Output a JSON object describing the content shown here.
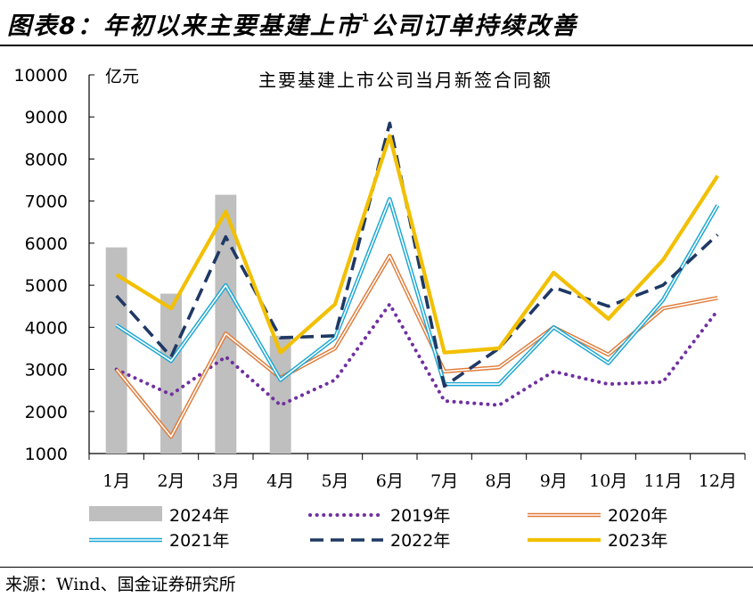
{
  "header": {
    "title": "图表8：年初以来主要基建上市",
    "title_sup": "1",
    "title_tail": "公司订单持续改善"
  },
  "source_note": "来源：Wind、国金证券研究所",
  "chart_data": {
    "type": "bar+line",
    "title": "主要基建上市公司当月新签合同额",
    "ylabel": "亿元",
    "xlabel": "",
    "ylim": [
      1000,
      10000
    ],
    "yticks": [
      1000,
      2000,
      3000,
      4000,
      5000,
      6000,
      7000,
      8000,
      9000,
      10000
    ],
    "categories": [
      "1月",
      "2月",
      "3月",
      "4月",
      "5月",
      "6月",
      "7月",
      "8月",
      "9月",
      "10月",
      "11月",
      "12月"
    ],
    "grid": false,
    "legend_position": "bottom",
    "bar_series": {
      "name": "2024年",
      "color": "#bfbfbf",
      "values": [
        5900,
        4800,
        7150,
        3800
      ]
    },
    "series": [
      {
        "name": "2019年",
        "style": "dotted",
        "color": "#7030a0",
        "values": [
          3000,
          2400,
          3300,
          2150,
          2750,
          4550,
          2250,
          2150,
          2950,
          2650,
          2700,
          4400
        ]
      },
      {
        "name": "2020年",
        "style": "double",
        "color": "#e07b39",
        "values": [
          3000,
          1400,
          3850,
          2800,
          3500,
          5700,
          2950,
          3050,
          4000,
          3350,
          4450,
          4700
        ]
      },
      {
        "name": "2021年",
        "style": "double",
        "color": "#1aa6d4",
        "values": [
          4050,
          3200,
          5000,
          2750,
          3750,
          7050,
          2650,
          2650,
          4000,
          3150,
          4650,
          6900
        ]
      },
      {
        "name": "2022年",
        "style": "dashed",
        "color": "#1f3864",
        "values": [
          4750,
          3300,
          6150,
          3750,
          3800,
          8850,
          2600,
          3500,
          4950,
          4500,
          5000,
          6200
        ]
      },
      {
        "name": "2023年",
        "style": "solid",
        "color": "#f2c000",
        "values": [
          5250,
          4450,
          6750,
          3400,
          4550,
          8550,
          3400,
          3500,
          5300,
          4200,
          5600,
          7600
        ]
      }
    ]
  }
}
